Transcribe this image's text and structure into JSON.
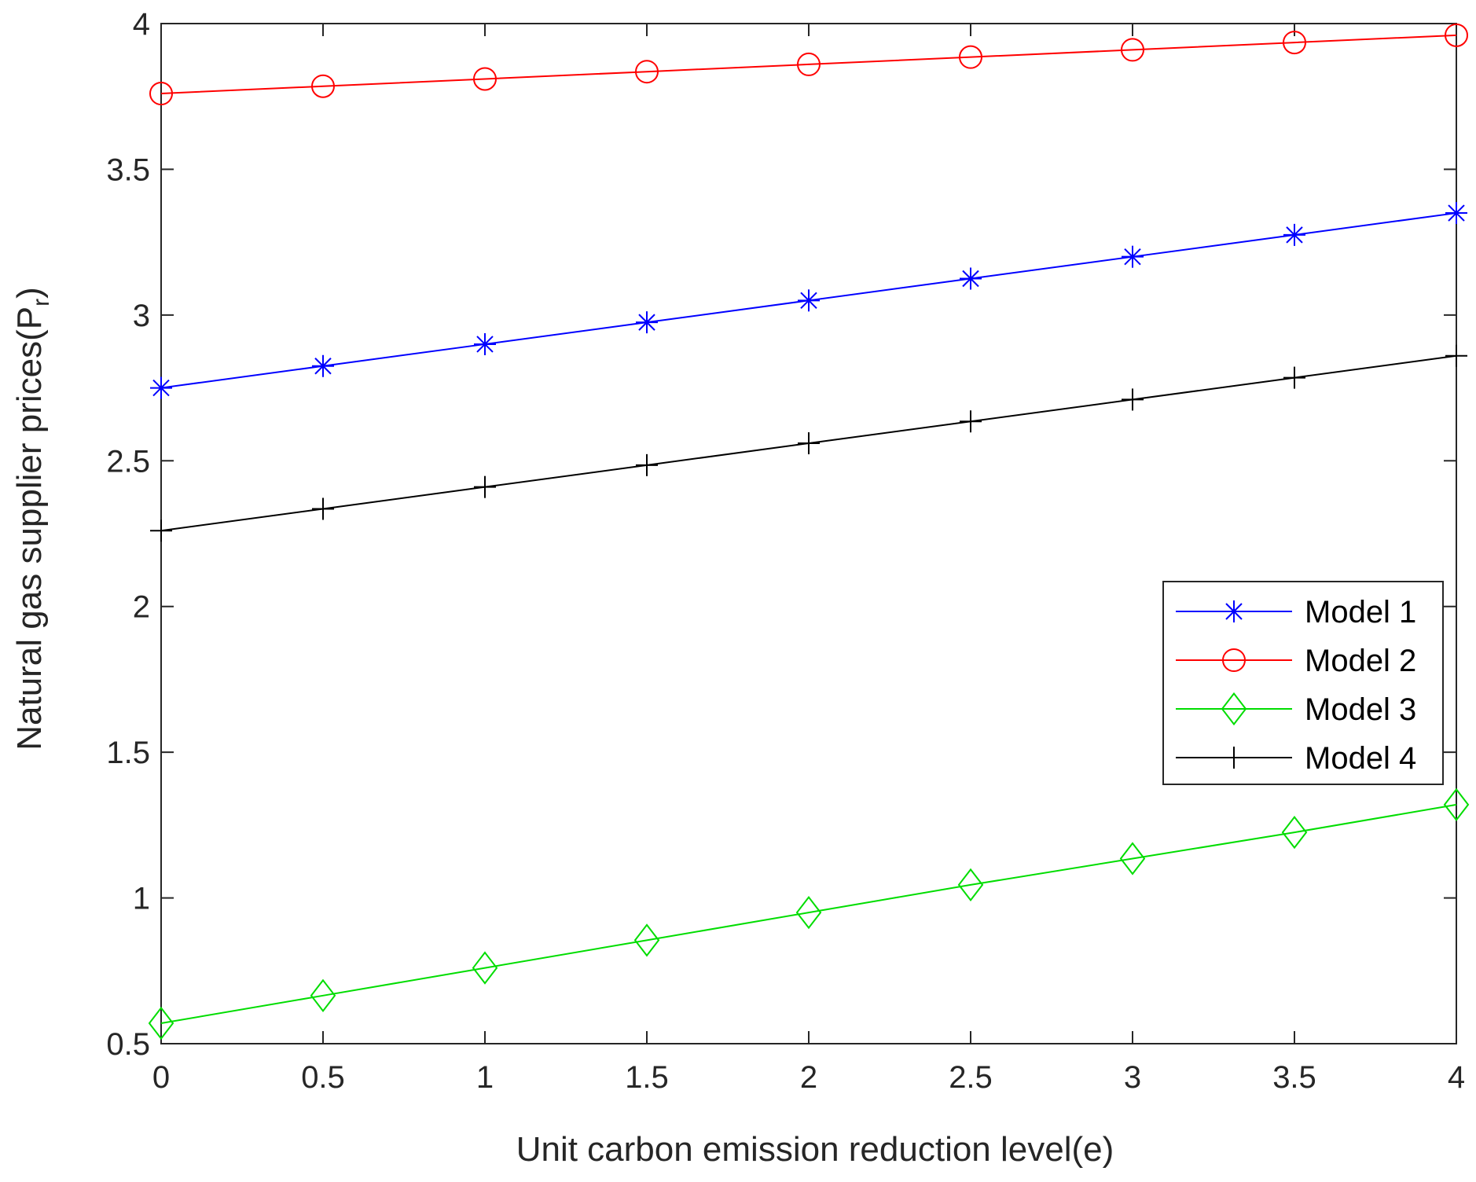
{
  "chart_data": {
    "type": "line",
    "xlabel": "Unit carbon emission reduction level(e)",
    "ylabel_main": "Natural gas supplier prices(P",
    "ylabel_sub": "r",
    "ylabel_close": ")",
    "xlim": [
      0,
      4
    ],
    "ylim": [
      0.5,
      4
    ],
    "xticks": [
      "0",
      "0.5",
      "1",
      "1.5",
      "2",
      "2.5",
      "3",
      "3.5",
      "4"
    ],
    "yticks": [
      "0.5",
      "1",
      "1.5",
      "2",
      "2.5",
      "3",
      "3.5",
      "4"
    ],
    "grid": false,
    "legend_position": "right",
    "x": [
      0,
      0.5,
      1,
      1.5,
      2,
      2.5,
      3,
      3.5,
      4
    ],
    "series": [
      {
        "name": "Model 1",
        "color": "#0000ff",
        "marker": "asterisk",
        "values": [
          2.75,
          2.825,
          2.9,
          2.975,
          3.05,
          3.125,
          3.2,
          3.275,
          3.35
        ]
      },
      {
        "name": "Model 2",
        "color": "#ff0000",
        "marker": "circle",
        "values": [
          3.76,
          3.785,
          3.81,
          3.835,
          3.86,
          3.885,
          3.91,
          3.935,
          3.96
        ]
      },
      {
        "name": "Model 3",
        "color": "#00dd00",
        "marker": "diamond",
        "values": [
          0.57,
          0.665,
          0.76,
          0.855,
          0.95,
          1.045,
          1.135,
          1.225,
          1.32
        ]
      },
      {
        "name": "Model 4",
        "color": "#000000",
        "marker": "plus",
        "values": [
          2.26,
          2.335,
          2.41,
          2.485,
          2.56,
          2.635,
          2.71,
          2.785,
          2.86
        ]
      }
    ]
  }
}
